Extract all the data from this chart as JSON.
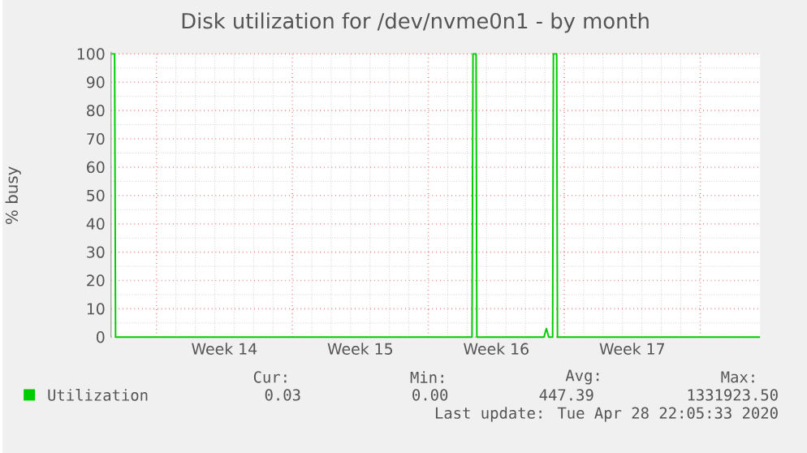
{
  "chart_data": {
    "type": "line",
    "title": "Disk utilization for /dev/nvme0n1 - by month",
    "ylabel": "% busy",
    "xlim": [
      "2020-03-27T16:00",
      "2020-04-30T01:55"
    ],
    "ylim": [
      0,
      100
    ],
    "xticks": [
      {
        "value": "2020-03-30",
        "label": null
      },
      {
        "value": "2020-04-02T12:00",
        "label": "Week 14"
      },
      {
        "value": "2020-04-06",
        "label": null
      },
      {
        "value": "2020-04-09T12:00",
        "label": "Week 15"
      },
      {
        "value": "2020-04-13",
        "label": null
      },
      {
        "value": "2020-04-16T12:00",
        "label": "Week 16"
      },
      {
        "value": "2020-04-20",
        "label": null
      },
      {
        "value": "2020-04-23T12:00",
        "label": "Week 17"
      },
      {
        "value": "2020-04-27",
        "label": null
      }
    ],
    "yticks": [
      0,
      10,
      20,
      30,
      40,
      50,
      60,
      70,
      80,
      90,
      100
    ],
    "grid": true,
    "legend": "bottom",
    "series": [
      {
        "name": "Utilization",
        "color": "#00cc00",
        "x": [
          "2020-03-27T16:00",
          "2020-03-27T20:24",
          "2020-03-27T21:36",
          "2020-04-15T06:00",
          "2020-04-15T07:12",
          "2020-04-15T11:02",
          "2020-04-15T12:00",
          "2020-04-18T22:48",
          "2020-04-19T01:55",
          "2020-04-19T04:48",
          "2020-04-19T09:36",
          "2020-04-19T10:34",
          "2020-04-19T14:38",
          "2020-04-19T15:36",
          "2020-04-30T01:55"
        ],
        "values": [
          100,
          100,
          0,
          0,
          100,
          100,
          0,
          0,
          3,
          0,
          0,
          100,
          100,
          0,
          0
        ]
      }
    ],
    "annotations": [
      "Cur:",
      "Min:",
      "Avg:",
      "Max:",
      "0.03",
      "0.00",
      "447.39",
      "1331923.50",
      "Last update: Tue Apr 28 22:05:33 2020"
    ]
  }
}
